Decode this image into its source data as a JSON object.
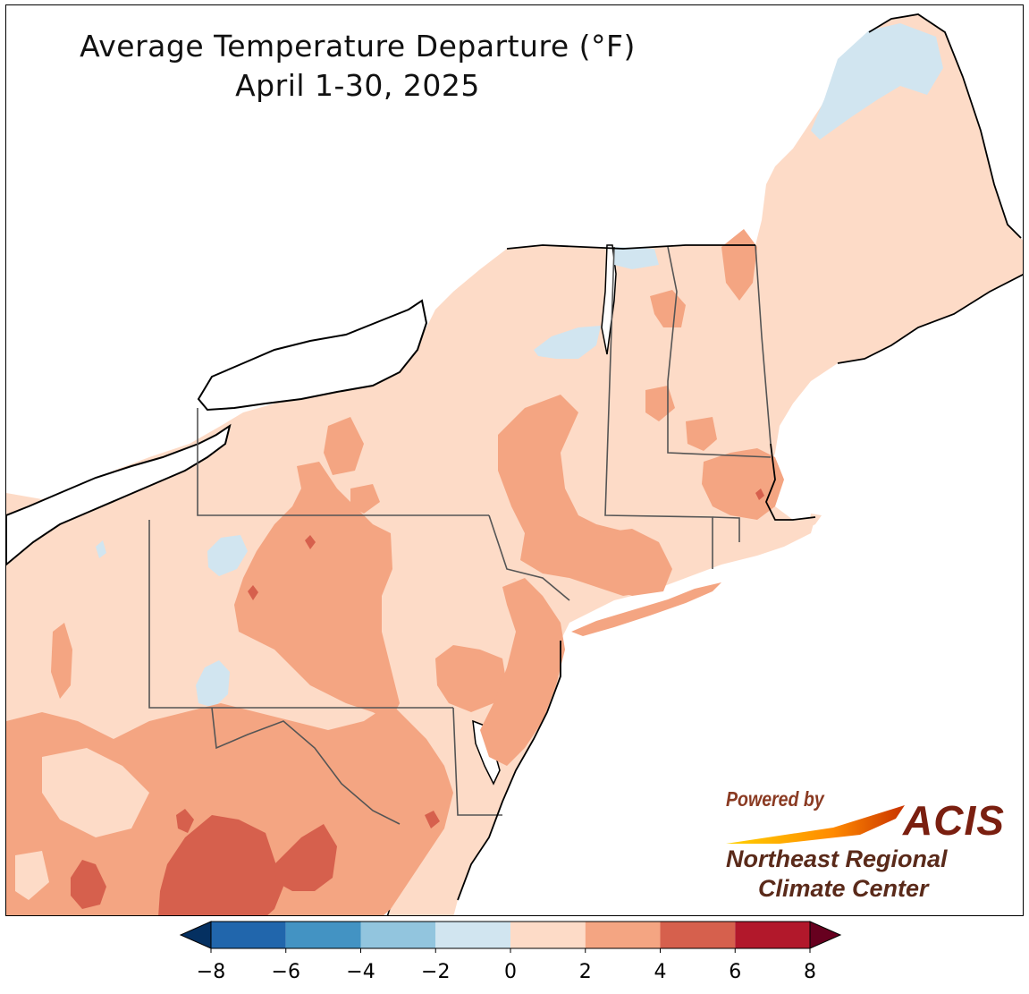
{
  "title": {
    "line1": "Average Temperature Departure (°F)",
    "line2": "April 1-30, 2025"
  },
  "logo": {
    "powered_by": "Powered by",
    "acis": "ACIS",
    "org_line1": "Northeast Regional",
    "org_line2": "Climate Center"
  },
  "colorbar": {
    "ticks": [
      "−8",
      "−6",
      "−4",
      "−2",
      "0",
      "2",
      "4",
      "6",
      "8"
    ],
    "bins": [
      {
        "range": [
          -8,
          -6
        ],
        "color": "#2166ac"
      },
      {
        "range": [
          -6,
          -4
        ],
        "color": "#4393c3"
      },
      {
        "range": [
          -4,
          -2
        ],
        "color": "#92c5de"
      },
      {
        "range": [
          -2,
          0
        ],
        "color": "#d1e5f0"
      },
      {
        "range": [
          0,
          2
        ],
        "color": "#fddbc7"
      },
      {
        "range": [
          2,
          4
        ],
        "color": "#f4a582"
      },
      {
        "range": [
          4,
          6
        ],
        "color": "#d6604d"
      },
      {
        "range": [
          6,
          8
        ],
        "color": "#b2182b"
      }
    ],
    "under_color": "#053061",
    "over_color": "#67001f"
  },
  "colors": {
    "water": "#ffffff",
    "coast": "#000000",
    "state_border": "#555555",
    "county_border": "#c9a898"
  }
}
